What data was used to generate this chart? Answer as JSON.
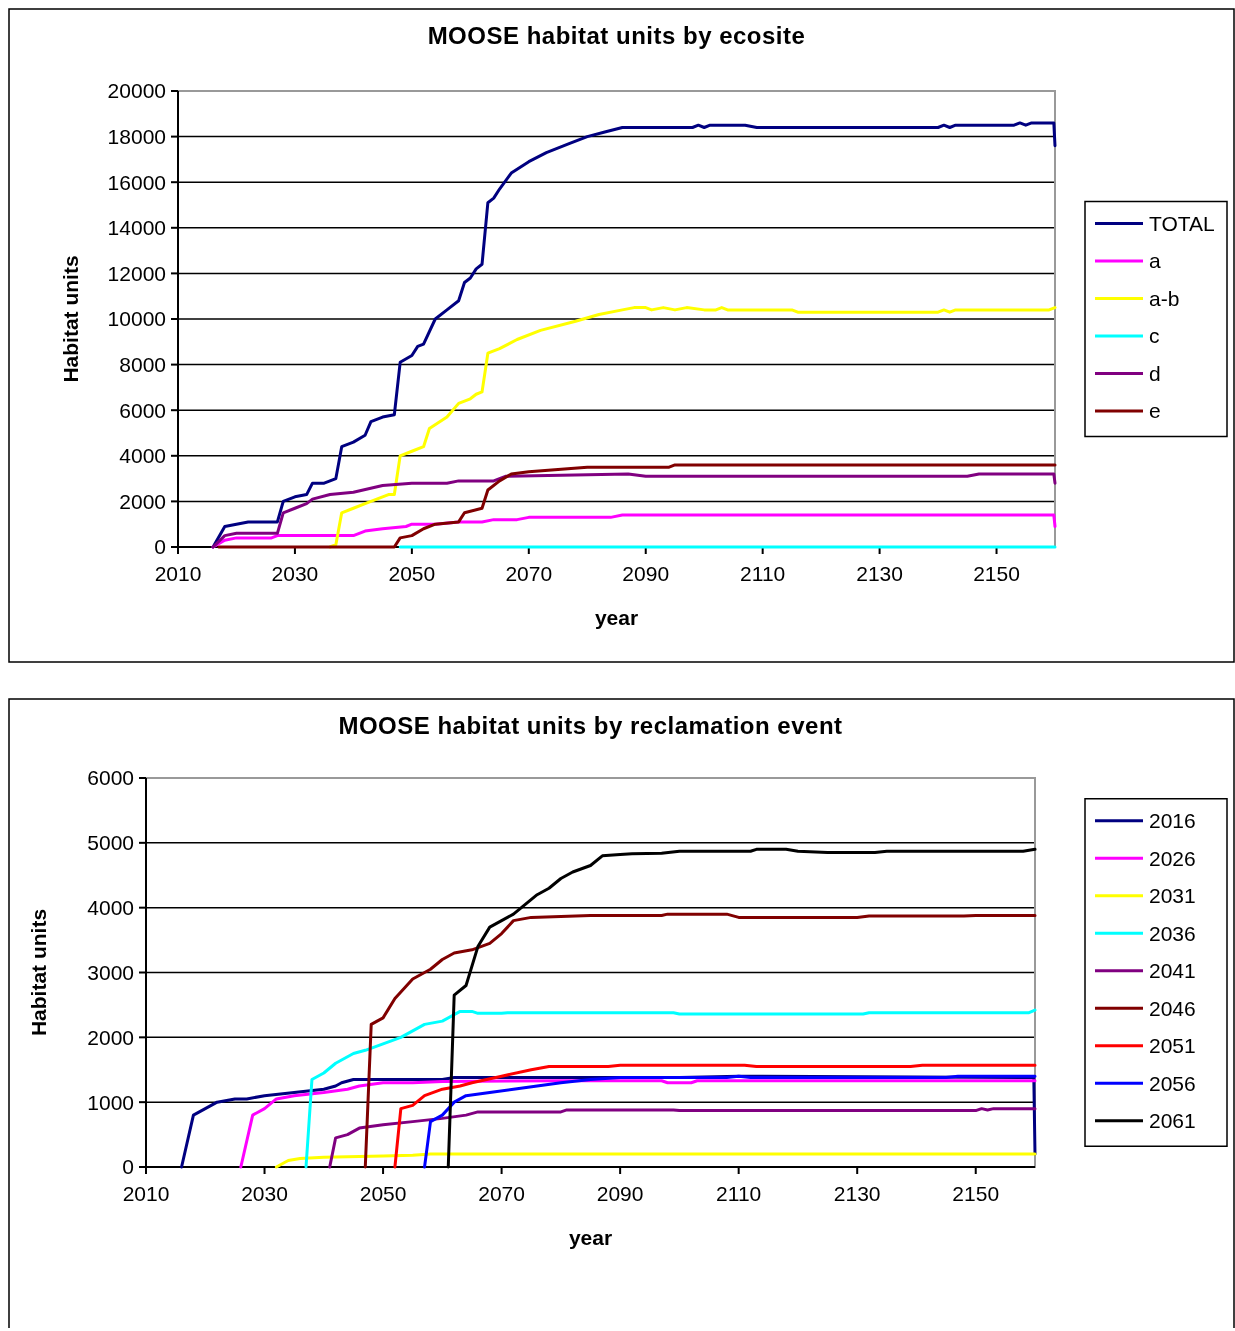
{
  "chart_data": [
    {
      "type": "line",
      "title": "MOOSE habitat units by ecosite",
      "xlabel": "year",
      "ylabel": "Habitat units",
      "xlim": [
        2010,
        2160
      ],
      "xticks": [
        2010,
        2030,
        2050,
        2070,
        2090,
        2110,
        2130,
        2150
      ],
      "ylim": [
        0,
        20000
      ],
      "yticks": [
        0,
        2000,
        4000,
        6000,
        8000,
        10000,
        12000,
        14000,
        16000,
        18000,
        20000
      ],
      "grid": "y",
      "legend": "right",
      "marker": "none",
      "line_style": "solid",
      "series": [
        {
          "name": "TOTAL",
          "color": "#000080",
          "x": [
            2016,
            2018,
            2020,
            2022,
            2025,
            2027,
            2028,
            2030,
            2032,
            2033,
            2035,
            2037,
            2038,
            2040,
            2042,
            2043,
            2045,
            2047,
            2048,
            2050,
            2051,
            2052,
            2054,
            2056,
            2058,
            2059,
            2060,
            2061,
            2062,
            2063,
            2064,
            2065,
            2067,
            2070,
            2073,
            2077,
            2080,
            2083,
            2086,
            2098,
            2099,
            2100,
            2101,
            2107,
            2109,
            2140,
            2141,
            2142,
            2143,
            2153,
            2154,
            2155,
            2156,
            2159.8,
            2160
          ],
          "values": [
            0,
            900,
            1000,
            1100,
            1100,
            1100,
            2000,
            2200,
            2300,
            2800,
            2800,
            3000,
            4400,
            4600,
            4900,
            5500,
            5700,
            5800,
            8100,
            8400,
            8800,
            8900,
            10000,
            10400,
            10800,
            11600,
            11800,
            12200,
            12400,
            15100,
            15300,
            15700,
            16400,
            16900,
            17300,
            17700,
            18000,
            18200,
            18400,
            18400,
            18500,
            18400,
            18500,
            18500,
            18400,
            18400,
            18500,
            18400,
            18500,
            18500,
            18600,
            18500,
            18600,
            18600,
            17600
          ]
        },
        {
          "name": "a",
          "color": "#ff00ff",
          "x": [
            2016,
            2018,
            2020,
            2026,
            2027,
            2040,
            2042,
            2045,
            2049,
            2050,
            2054,
            2058,
            2062,
            2064,
            2068,
            2070,
            2084,
            2086,
            2159.8,
            2160
          ],
          "values": [
            0,
            300,
            400,
            400,
            500,
            500,
            700,
            800,
            900,
            1000,
            1000,
            1100,
            1100,
            1200,
            1200,
            1300,
            1300,
            1400,
            1400,
            900
          ]
        },
        {
          "name": "a-b",
          "color": "#ffff00",
          "x": [
            2036,
            2037,
            2038,
            2040,
            2042,
            2044,
            2046,
            2047,
            2048,
            2050,
            2052,
            2053,
            2056,
            2058,
            2060,
            2061,
            2062,
            2063,
            2065,
            2068,
            2072,
            2078,
            2082,
            2086,
            2088,
            2090,
            2091,
            2093,
            2095,
            2097,
            2100,
            2102,
            2103,
            2104,
            2115,
            2116,
            2140,
            2141,
            2142,
            2143,
            2159,
            2160
          ],
          "values": [
            0,
            100,
            1500,
            1700,
            1900,
            2100,
            2300,
            2300,
            4000,
            4200,
            4400,
            5200,
            5700,
            6300,
            6500,
            6700,
            6800,
            8500,
            8700,
            9100,
            9500,
            9900,
            10200,
            10400,
            10500,
            10500,
            10400,
            10500,
            10400,
            10500,
            10400,
            10400,
            10500,
            10400,
            10400,
            10300,
            10300,
            10400,
            10300,
            10400,
            10400,
            10500
          ]
        },
        {
          "name": "c",
          "color": "#00ffff",
          "x": [
            2048,
            2160
          ],
          "values": [
            0,
            0
          ]
        },
        {
          "name": "d",
          "color": "#800080",
          "x": [
            2016,
            2018,
            2020,
            2027,
            2028,
            2030,
            2032,
            2033,
            2036,
            2040,
            2045,
            2050,
            2056,
            2058,
            2064,
            2066,
            2087,
            2090,
            2145,
            2147,
            2159.8,
            2160
          ],
          "values": [
            0,
            500,
            600,
            600,
            1500,
            1700,
            1900,
            2100,
            2300,
            2400,
            2700,
            2800,
            2800,
            2900,
            2900,
            3100,
            3200,
            3100,
            3100,
            3200,
            3200,
            2800
          ]
        },
        {
          "name": "e",
          "color": "#800000",
          "x": [
            2017,
            2047,
            2048,
            2050,
            2052,
            2054,
            2058,
            2059,
            2062,
            2063,
            2065,
            2067,
            2070,
            2075,
            2080,
            2094,
            2095,
            2160
          ],
          "values": [
            0,
            0,
            400,
            500,
            800,
            1000,
            1100,
            1500,
            1700,
            2500,
            2900,
            3200,
            3300,
            3400,
            3500,
            3500,
            3600,
            3600
          ]
        }
      ]
    },
    {
      "type": "line",
      "title": "MOOSE habitat units by reclamation event",
      "xlabel": "year",
      "ylabel": "Habitat units",
      "xlim": [
        2010,
        2160
      ],
      "xticks": [
        2010,
        2030,
        2050,
        2070,
        2090,
        2110,
        2130,
        2150
      ],
      "ylim": [
        0,
        6000
      ],
      "yticks": [
        0,
        1000,
        2000,
        3000,
        4000,
        5000,
        6000
      ],
      "grid": "y",
      "legend": "right",
      "marker": "none",
      "line_style": "solid",
      "series": [
        {
          "name": "2016",
          "color": "#000080",
          "x": [
            2016,
            2018,
            2020,
            2022,
            2025,
            2027,
            2030,
            2035,
            2040,
            2042,
            2043,
            2045,
            2060,
            2062,
            2100,
            2110,
            2159.8,
            2160
          ],
          "values": [
            0,
            800,
            900,
            1000,
            1050,
            1050,
            1100,
            1150,
            1200,
            1250,
            1300,
            1350,
            1350,
            1380,
            1380,
            1400,
            1380,
            200
          ]
        },
        {
          "name": "2026",
          "color": "#ff00ff",
          "x": [
            2026,
            2028,
            2030,
            2032,
            2035,
            2040,
            2044,
            2046,
            2050,
            2055,
            2060,
            2080,
            2097,
            2098,
            2102,
            2103,
            2160
          ],
          "values": [
            0,
            800,
            900,
            1050,
            1100,
            1150,
            1200,
            1250,
            1300,
            1300,
            1320,
            1330,
            1330,
            1300,
            1300,
            1330,
            1330
          ]
        },
        {
          "name": "2031",
          "color": "#ffff00",
          "x": [
            2032,
            2034,
            2036,
            2040,
            2050,
            2055,
            2058,
            2160
          ],
          "values": [
            0,
            100,
            130,
            150,
            170,
            180,
            200,
            200
          ]
        },
        {
          "name": "2036",
          "color": "#00ffff",
          "x": [
            2037,
            2038,
            2040,
            2042,
            2045,
            2047,
            2050,
            2053,
            2055,
            2057,
            2060,
            2063,
            2065,
            2066,
            2070,
            2071,
            2099,
            2100,
            2131,
            2132,
            2159,
            2160
          ],
          "values": [
            0,
            1350,
            1450,
            1600,
            1750,
            1800,
            1900,
            2000,
            2100,
            2200,
            2250,
            2400,
            2400,
            2370,
            2370,
            2380,
            2380,
            2360,
            2360,
            2380,
            2380,
            2420
          ]
        },
        {
          "name": "2041",
          "color": "#800080",
          "x": [
            2041,
            2042,
            2044,
            2046,
            2050,
            2055,
            2060,
            2064,
            2066,
            2080,
            2081,
            2099,
            2100,
            2150,
            2151,
            2152,
            2153,
            2160
          ],
          "values": [
            0,
            450,
            500,
            600,
            650,
            700,
            750,
            800,
            850,
            850,
            880,
            880,
            870,
            870,
            900,
            880,
            900,
            900
          ]
        },
        {
          "name": "2046",
          "color": "#800000",
          "x": [
            2047,
            2048,
            2050,
            2052,
            2055,
            2058,
            2060,
            2062,
            2065,
            2068,
            2070,
            2072,
            2075,
            2085,
            2097,
            2098,
            2108,
            2110,
            2130,
            2132,
            2148,
            2150,
            2160
          ],
          "values": [
            0,
            2200,
            2300,
            2600,
            2900,
            3050,
            3200,
            3300,
            3350,
            3450,
            3600,
            3800,
            3850,
            3880,
            3880,
            3900,
            3900,
            3850,
            3850,
            3870,
            3870,
            3880,
            3880
          ]
        },
        {
          "name": "2051",
          "color": "#ff0000",
          "x": [
            2052,
            2053,
            2055,
            2057,
            2060,
            2063,
            2065,
            2070,
            2075,
            2078,
            2088,
            2090,
            2111,
            2113,
            2139,
            2141,
            2160
          ],
          "values": [
            0,
            900,
            950,
            1100,
            1200,
            1250,
            1300,
            1400,
            1500,
            1550,
            1550,
            1570,
            1570,
            1550,
            1550,
            1570,
            1570
          ]
        },
        {
          "name": "2056",
          "color": "#0000ff",
          "x": [
            2057,
            2058,
            2060,
            2062,
            2064,
            2068,
            2072,
            2076,
            2080,
            2085,
            2090,
            2108,
            2110,
            2112,
            2145,
            2147,
            2160
          ],
          "values": [
            0,
            700,
            800,
            1000,
            1100,
            1150,
            1200,
            1250,
            1300,
            1350,
            1380,
            1380,
            1400,
            1380,
            1380,
            1400,
            1400
          ]
        },
        {
          "name": "2061",
          "color": "#000000",
          "x": [
            2061,
            2062,
            2064,
            2066,
            2068,
            2070,
            2072,
            2074,
            2076,
            2078,
            2080,
            2082,
            2085,
            2087,
            2090,
            2092,
            2097,
            2100,
            2112,
            2113,
            2118,
            2120,
            2125,
            2133,
            2135,
            2158,
            2160
          ],
          "values": [
            0,
            2650,
            2800,
            3400,
            3700,
            3800,
            3900,
            4050,
            4200,
            4300,
            4450,
            4550,
            4650,
            4800,
            4820,
            4830,
            4840,
            4870,
            4870,
            4900,
            4900,
            4870,
            4850,
            4850,
            4870,
            4870,
            4900
          ]
        }
      ]
    }
  ]
}
